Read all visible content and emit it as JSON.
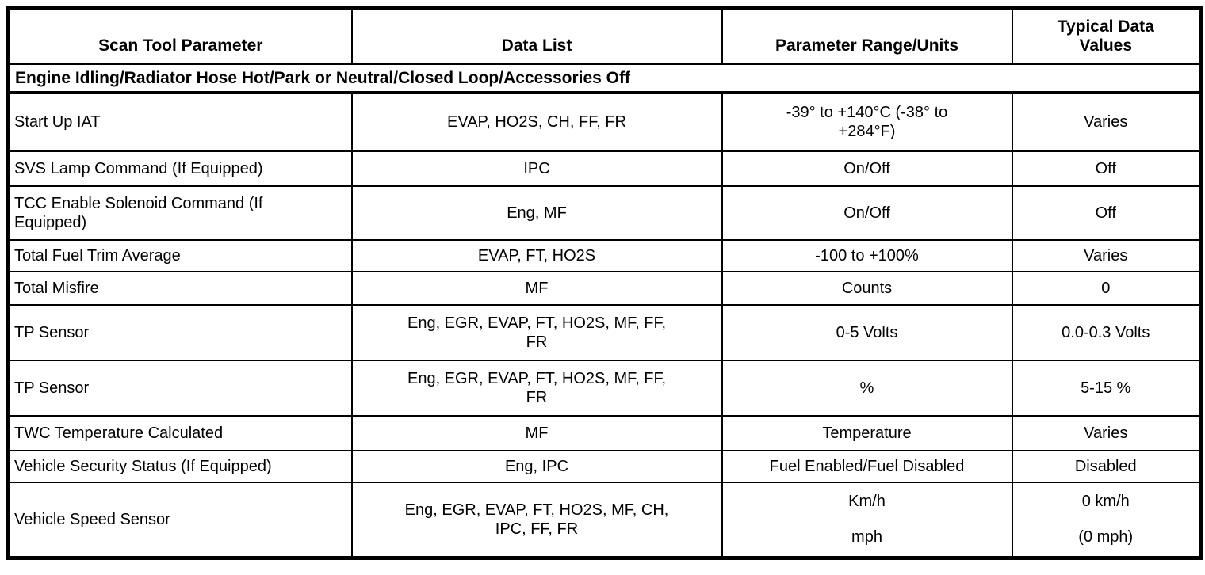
{
  "table": {
    "columns": {
      "parameter": "Scan Tool Parameter",
      "data_list": "Data List",
      "range_units": "Parameter Range/Units",
      "typical": "Typical Data Values"
    },
    "section_header": "Engine Idling/Radiator Hose Hot/Park or Neutral/Closed Loop/Accessories Off",
    "rows": [
      {
        "parameter": "Start Up IAT",
        "data_list": "EVAP, HO2S, CH, FF, FR",
        "range_units": "-39° to +140°C (-38° to +284°F)",
        "typical": "Varies"
      },
      {
        "parameter": "SVS Lamp Command (If Equipped)",
        "data_list": "IPC",
        "range_units": "On/Off",
        "typical": "Off"
      },
      {
        "parameter": "TCC Enable Solenoid Command (If Equipped)",
        "data_list": "Eng, MF",
        "range_units": "On/Off",
        "typical": "Off"
      },
      {
        "parameter": "Total Fuel Trim Average",
        "data_list": "EVAP, FT, HO2S",
        "range_units": "-100 to +100%",
        "typical": "Varies"
      },
      {
        "parameter": "Total Misfire",
        "data_list": "MF",
        "range_units": "Counts",
        "typical": "0"
      },
      {
        "parameter": "TP Sensor",
        "data_list": "Eng, EGR, EVAP, FT, HO2S, MF, FF, FR",
        "range_units": "0-5 Volts",
        "typical": "0.0-0.3 Volts"
      },
      {
        "parameter": "TP Sensor",
        "data_list": "Eng, EGR, EVAP, FT, HO2S, MF, FF, FR",
        "range_units": "%",
        "typical": "5-15 %"
      },
      {
        "parameter": "TWC Temperature Calculated",
        "data_list": "MF",
        "range_units": "Temperature",
        "typical": "Varies"
      },
      {
        "parameter": "Vehicle Security Status (If Equipped)",
        "data_list": "Eng, IPC",
        "range_units": "Fuel Enabled/Fuel Disabled",
        "typical": "Disabled"
      },
      {
        "parameter": "Vehicle Speed Sensor",
        "data_list": "Eng, EGR, EVAP, FT, HO2S, MF, CH, IPC, FF, FR",
        "range_units": {
          "line1": "Km/h",
          "line2": "mph"
        },
        "typical": {
          "line1": "0 km/h",
          "line2": "(0 mph)"
        }
      }
    ]
  },
  "colors": {
    "border": "#000000",
    "text": "#000000",
    "background": "#ffffff"
  }
}
